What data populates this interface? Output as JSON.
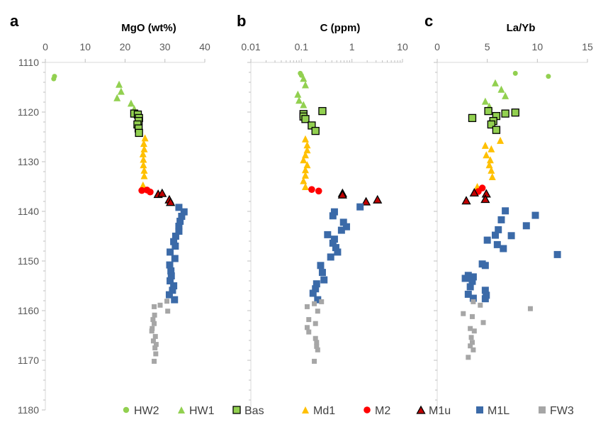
{
  "depth_axis": {
    "range": [
      1110,
      1180
    ],
    "ticks": [
      "1110",
      "1120",
      "1130",
      "1140",
      "1150",
      "1160",
      "1170",
      "1180"
    ],
    "inverted": true
  },
  "legend": {
    "placement": "bottom",
    "items": [
      {
        "name": "HW2",
        "shape": "circle",
        "color": "#92d050"
      },
      {
        "name": "HW1",
        "shape": "triangle",
        "color": "#92d050"
      },
      {
        "name": "Bas",
        "shape": "square-outlined",
        "color": "#92d050",
        "stroke": "#000000"
      },
      {
        "name": "Md1",
        "shape": "triangle",
        "color": "#ffc000"
      },
      {
        "name": "M2",
        "shape": "circle",
        "color": "#ff0000"
      },
      {
        "name": "M1u",
        "shape": "triangle-outlined",
        "color": "#c00000",
        "stroke": "#000000"
      },
      {
        "name": "M1L",
        "shape": "square",
        "color": "#3b6aa8"
      },
      {
        "name": "FW3",
        "shape": "square",
        "color": "#a6a6a6"
      }
    ]
  },
  "chart_data": [
    {
      "letter": "a",
      "type": "scatter",
      "title": "MgO (wt%)",
      "xscale": "linear",
      "xlim": [
        0,
        40
      ],
      "xticks": [
        "0",
        "10",
        "20",
        "30",
        "40"
      ],
      "grid": false,
      "series": [
        {
          "name": "HW2",
          "points": [
            [
              2.3,
              1112.8
            ],
            [
              2.1,
              1113.3
            ]
          ]
        },
        {
          "name": "HW1",
          "points": [
            [
              18.5,
              1114.4
            ],
            [
              19,
              1115.8
            ],
            [
              18,
              1117.1
            ],
            [
              21.5,
              1118.2
            ],
            [
              22.3,
              1119.3
            ]
          ]
        },
        {
          "name": "Bas",
          "points": [
            [
              22.3,
              1120.3
            ],
            [
              23.2,
              1120.5
            ],
            [
              23.5,
              1121.2
            ],
            [
              23.4,
              1121.8
            ],
            [
              23.1,
              1122.5
            ],
            [
              23.4,
              1123.3
            ],
            [
              23.5,
              1124.2
            ]
          ]
        },
        {
          "name": "Md1",
          "points": [
            [
              25,
              1125.2
            ],
            [
              24.7,
              1126.3
            ],
            [
              24.8,
              1127.4
            ],
            [
              24.5,
              1128.4
            ],
            [
              24.6,
              1129.5
            ],
            [
              24.6,
              1130.6
            ],
            [
              24.8,
              1131.7
            ],
            [
              24.8,
              1132.8
            ],
            [
              24.5,
              1134.7
            ]
          ]
        },
        {
          "name": "M2",
          "points": [
            [
              24.2,
              1135.8
            ],
            [
              25.5,
              1135.7
            ],
            [
              26.3,
              1136.1
            ]
          ]
        },
        {
          "name": "M1u",
          "points": [
            [
              28.3,
              1136.5
            ],
            [
              29.3,
              1136.3
            ],
            [
              31.1,
              1137.6
            ],
            [
              31.4,
              1138.1
            ]
          ]
        },
        {
          "name": "M1L",
          "points": [
            [
              33.5,
              1139.2
            ],
            [
              34.8,
              1140.1
            ],
            [
              34.2,
              1141
            ],
            [
              33.8,
              1142
            ],
            [
              33.5,
              1143
            ],
            [
              33.5,
              1144
            ],
            [
              32.7,
              1145
            ],
            [
              32.2,
              1146.1
            ],
            [
              32.6,
              1147
            ],
            [
              31.3,
              1148.2
            ],
            [
              32.5,
              1149.5
            ],
            [
              31.2,
              1150.8
            ],
            [
              31.5,
              1152
            ],
            [
              31.6,
              1153
            ],
            [
              31.3,
              1154
            ],
            [
              32.2,
              1155
            ],
            [
              31.9,
              1155.9
            ],
            [
              31.1,
              1156.8
            ],
            [
              32.4,
              1157.8
            ]
          ]
        },
        {
          "name": "FW3",
          "points": [
            [
              30.5,
              1158.1
            ],
            [
              28.8,
              1158.9
            ],
            [
              27.3,
              1159.2
            ],
            [
              30.7,
              1160.1
            ],
            [
              27.4,
              1160.9
            ],
            [
              27,
              1161.8
            ],
            [
              27.3,
              1162.6
            ],
            [
              26.8,
              1163.6
            ],
            [
              26.7,
              1164.1
            ],
            [
              27.6,
              1165.2
            ],
            [
              27.1,
              1166.1
            ],
            [
              27.8,
              1166.8
            ],
            [
              27.5,
              1167.5
            ],
            [
              27.7,
              1168.7
            ],
            [
              27.3,
              1170.2
            ]
          ]
        }
      ]
    },
    {
      "letter": "b",
      "type": "scatter",
      "title": "C (ppm)",
      "xscale": "log",
      "xlim": [
        0.01,
        10
      ],
      "xticks": [
        "0.01",
        "0.1",
        "1",
        "10"
      ],
      "grid": false,
      "series": [
        {
          "name": "HW2",
          "points": [
            [
              0.095,
              1112.2
            ],
            [
              0.1,
              1112.6
            ]
          ]
        },
        {
          "name": "HW1",
          "points": [
            [
              0.11,
              1113.2
            ],
            [
              0.12,
              1114.5
            ],
            [
              0.085,
              1116.4
            ],
            [
              0.09,
              1117.6
            ],
            [
              0.11,
              1118.5
            ]
          ]
        },
        {
          "name": "Bas",
          "points": [
            [
              0.11,
              1120.4
            ],
            [
              0.11,
              1120.9
            ],
            [
              0.12,
              1121.4
            ],
            [
              0.26,
              1119.8
            ],
            [
              0.16,
              1122.7
            ],
            [
              0.19,
              1123.8
            ]
          ]
        },
        {
          "name": "Md1",
          "points": [
            [
              0.12,
              1125.4
            ],
            [
              0.13,
              1126.6
            ],
            [
              0.13,
              1127.6
            ],
            [
              0.12,
              1128.6
            ],
            [
              0.11,
              1129.6
            ],
            [
              0.13,
              1130.6
            ],
            [
              0.12,
              1131.6
            ],
            [
              0.12,
              1132.7
            ],
            [
              0.11,
              1133.8
            ],
            [
              0.12,
              1135
            ]
          ]
        },
        {
          "name": "M2",
          "points": [
            [
              0.16,
              1135.6
            ],
            [
              0.22,
              1135.9
            ]
          ]
        },
        {
          "name": "M1u",
          "points": [
            [
              0.65,
              1136.3
            ],
            [
              0.65,
              1136.6
            ],
            [
              1.9,
              1138
            ],
            [
              3.2,
              1137.6
            ]
          ]
        },
        {
          "name": "M1L",
          "points": [
            [
              1.45,
              1139.1
            ],
            [
              0.45,
              1140.1
            ],
            [
              0.42,
              1140.9
            ],
            [
              0.68,
              1142.2
            ],
            [
              0.78,
              1143.1
            ],
            [
              0.62,
              1143.8
            ],
            [
              0.33,
              1144.7
            ],
            [
              0.45,
              1145.6
            ],
            [
              0.42,
              1146.4
            ],
            [
              0.48,
              1147.3
            ],
            [
              0.52,
              1148.2
            ],
            [
              0.38,
              1149.2
            ],
            [
              0.24,
              1150.9
            ],
            [
              0.26,
              1152.3
            ],
            [
              0.28,
              1153.8
            ],
            [
              0.2,
              1154.6
            ],
            [
              0.19,
              1155.6
            ],
            [
              0.17,
              1156.5
            ],
            [
              0.21,
              1157.8
            ]
          ]
        },
        {
          "name": "FW3",
          "points": [
            [
              0.25,
              1158.2
            ],
            [
              0.18,
              1158.6
            ],
            [
              0.13,
              1159.2
            ],
            [
              0.21,
              1160.1
            ],
            [
              0.14,
              1161.8
            ],
            [
              0.19,
              1162.6
            ],
            [
              0.13,
              1163.4
            ],
            [
              0.14,
              1164.3
            ],
            [
              0.19,
              1165.6
            ],
            [
              0.2,
              1166.4
            ],
            [
              0.2,
              1167.2
            ],
            [
              0.21,
              1167.9
            ],
            [
              0.18,
              1170.2
            ]
          ]
        }
      ]
    },
    {
      "letter": "c",
      "type": "scatter",
      "title": "La/Yb",
      "xscale": "linear",
      "xlim": [
        0,
        15
      ],
      "xticks": [
        "0",
        "5",
        "10",
        "15"
      ],
      "grid": false,
      "series": [
        {
          "name": "HW2",
          "points": [
            [
              7.8,
              1112.2
            ],
            [
              11.1,
              1112.8
            ]
          ]
        },
        {
          "name": "HW1",
          "points": [
            [
              5.8,
              1114.1
            ],
            [
              6.4,
              1115.4
            ],
            [
              6.8,
              1116.7
            ],
            [
              4.8,
              1117.8
            ],
            [
              5.2,
              1118.8
            ]
          ]
        },
        {
          "name": "Bas",
          "points": [
            [
              5.1,
              1119.8
            ],
            [
              7.8,
              1120.1
            ],
            [
              6.8,
              1120.3
            ],
            [
              5.9,
              1120.8
            ],
            [
              3.5,
              1121.2
            ],
            [
              5.6,
              1121.8
            ],
            [
              5.4,
              1122.5
            ],
            [
              5.9,
              1123.6
            ]
          ]
        },
        {
          "name": "Md1",
          "points": [
            [
              6.3,
              1125.7
            ],
            [
              4.8,
              1126.7
            ],
            [
              5.4,
              1127.4
            ],
            [
              4.9,
              1128.6
            ],
            [
              5.3,
              1129.6
            ],
            [
              5.2,
              1130.6
            ],
            [
              5.4,
              1131.7
            ],
            [
              5.5,
              1133
            ],
            [
              4,
              1135
            ],
            [
              3.9,
              1135.6
            ]
          ]
        },
        {
          "name": "M2",
          "points": [
            [
              4.5,
              1135.3
            ],
            [
              4.1,
              1136
            ]
          ]
        },
        {
          "name": "M1u",
          "points": [
            [
              3.7,
              1136.2
            ],
            [
              4.9,
              1136.4
            ],
            [
              2.9,
              1137.8
            ],
            [
              4.8,
              1137.5
            ]
          ]
        },
        {
          "name": "M1L",
          "points": [
            [
              6.8,
              1139.9
            ],
            [
              9.8,
              1140.8
            ],
            [
              6.4,
              1141.7
            ],
            [
              8.9,
              1142.9
            ],
            [
              6.1,
              1143.7
            ],
            [
              5.8,
              1144.8
            ],
            [
              7.4,
              1144.9
            ],
            [
              5,
              1145.8
            ],
            [
              6,
              1146.7
            ],
            [
              6.6,
              1147.5
            ],
            [
              12,
              1148.7
            ],
            [
              4.5,
              1150.6
            ],
            [
              4.8,
              1150.9
            ],
            [
              3.1,
              1152.9
            ],
            [
              3.6,
              1153.2
            ],
            [
              2.8,
              1153.5
            ],
            [
              3.5,
              1154.1
            ],
            [
              3.3,
              1155.2
            ],
            [
              4.8,
              1155.9
            ],
            [
              4.9,
              1156.9
            ],
            [
              3.1,
              1156.7
            ],
            [
              3.6,
              1157.5
            ],
            [
              4.8,
              1157.6
            ]
          ]
        },
        {
          "name": "FW3",
          "points": [
            [
              3.6,
              1158.2
            ],
            [
              4.3,
              1158.9
            ],
            [
              9.3,
              1159.6
            ],
            [
              2.6,
              1160.6
            ],
            [
              3.5,
              1161.2
            ],
            [
              4.6,
              1162.4
            ],
            [
              3.3,
              1163.6
            ],
            [
              3.7,
              1164.1
            ],
            [
              3.4,
              1165.4
            ],
            [
              3.5,
              1166.4
            ],
            [
              3.3,
              1167.1
            ],
            [
              3.6,
              1167.9
            ],
            [
              3.1,
              1169.4
            ]
          ]
        }
      ]
    }
  ]
}
